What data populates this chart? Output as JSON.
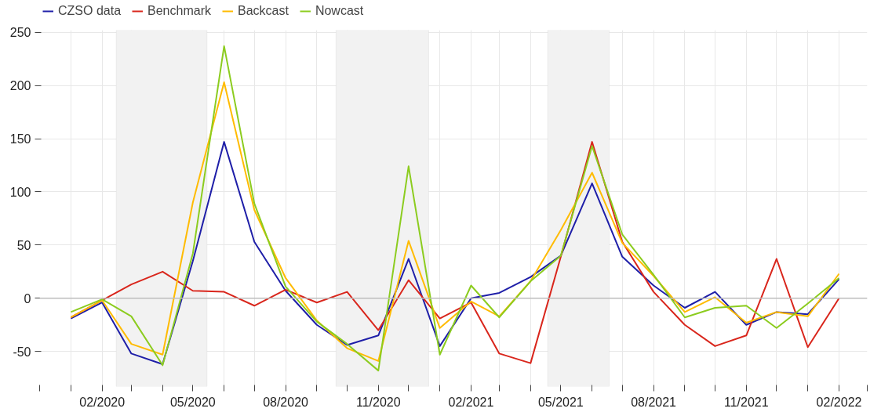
{
  "chart_data": {
    "type": "line",
    "x": [
      "2020-01",
      "2020-02",
      "2020-03",
      "2020-04",
      "2020-05",
      "2020-06",
      "2020-07",
      "2020-08",
      "2020-09",
      "2020-10",
      "2020-11",
      "2020-12",
      "2021-01",
      "2021-02",
      "2021-03",
      "2021-04",
      "2021-05",
      "2021-06",
      "2021-07",
      "2021-08",
      "2021-09",
      "2021-10",
      "2021-11",
      "2021-12",
      "2022-01",
      "2022-02"
    ],
    "series": [
      {
        "name": "CZSO data",
        "color": "#1f1fa8",
        "values": [
          -19,
          -4,
          -52,
          -62,
          35,
          147,
          53,
          7,
          -25,
          -44,
          -35,
          37,
          -45,
          0,
          5,
          20,
          40,
          108,
          39,
          12,
          -9,
          6,
          -25,
          -13,
          -15,
          18
        ]
      },
      {
        "name": "Benchmark",
        "color": "#d9261c",
        "values": [
          -18,
          -2,
          13,
          25,
          7,
          6,
          -7,
          8,
          -4,
          6,
          -30,
          17,
          -19,
          -4,
          -52,
          -61,
          39,
          147,
          53,
          6,
          -25,
          -45,
          -35,
          37,
          -46,
          0
        ]
      },
      {
        "name": "Backcast",
        "color": "#ffbb00",
        "values": [
          -18,
          -2,
          -43,
          -53,
          90,
          203,
          83,
          19,
          -21,
          -47,
          -59,
          54,
          -28,
          -3,
          -17,
          16,
          64,
          118,
          52,
          21,
          -13,
          1,
          -23,
          -13,
          -17,
          23
        ]
      },
      {
        "name": "Nowcast",
        "color": "#8ccc1f",
        "values": [
          -13,
          -1,
          -17,
          -63,
          42,
          237,
          89,
          11,
          -22,
          -43,
          -68,
          124,
          -53,
          12,
          -18,
          16,
          40,
          143,
          60,
          22,
          -18,
          -9,
          -7,
          -28,
          -5,
          19
        ]
      }
    ],
    "xlim": [
      "2019-12-01",
      "2022-03-01"
    ],
    "xticks": [
      {
        "value": "2019-12",
        "label": null
      },
      {
        "value": "2020-01",
        "label": null
      },
      {
        "value": "2020-02",
        "label": "02/2020"
      },
      {
        "value": "2020-03",
        "label": null
      },
      {
        "value": "2020-04",
        "label": null
      },
      {
        "value": "2020-05",
        "label": "05/2020"
      },
      {
        "value": "2020-06",
        "label": null
      },
      {
        "value": "2020-07",
        "label": null
      },
      {
        "value": "2020-08",
        "label": "08/2020"
      },
      {
        "value": "2020-09",
        "label": null
      },
      {
        "value": "2020-10",
        "label": null
      },
      {
        "value": "2020-11",
        "label": "11/2020"
      },
      {
        "value": "2020-12",
        "label": null
      },
      {
        "value": "2021-01",
        "label": null
      },
      {
        "value": "2021-02",
        "label": "02/2021"
      },
      {
        "value": "2021-03",
        "label": null
      },
      {
        "value": "2021-04",
        "label": null
      },
      {
        "value": "2021-05",
        "label": "05/2021"
      },
      {
        "value": "2021-06",
        "label": null
      },
      {
        "value": "2021-07",
        "label": null
      },
      {
        "value": "2021-08",
        "label": "08/2021"
      },
      {
        "value": "2021-09",
        "label": null
      },
      {
        "value": "2021-10",
        "label": null
      },
      {
        "value": "2021-11",
        "label": "11/2021"
      },
      {
        "value": "2021-12",
        "label": null
      },
      {
        "value": "2022-01",
        "label": null
      },
      {
        "value": "2022-02",
        "label": "02/2022"
      },
      {
        "value": "2022-03",
        "label": null
      }
    ],
    "ylim": [
      -83,
      252
    ],
    "yticks": [
      -50,
      0,
      50,
      100,
      150,
      200,
      250
    ],
    "ref_lines": [
      {
        "axis": "y",
        "value": 0,
        "color": "#bdbdbd"
      }
    ],
    "bands": [
      {
        "axis": "x",
        "from": "2020-02-15",
        "to": "2020-05-15",
        "color": "#f2f2f2"
      },
      {
        "axis": "x",
        "from": "2020-09-20",
        "to": "2020-12-21",
        "color": "#f2f2f2"
      },
      {
        "axis": "x",
        "from": "2021-04-18",
        "to": "2021-06-18",
        "color": "#f2f2f2"
      }
    ],
    "grid": true,
    "legend": "top left",
    "line_style": "solid",
    "marker": "none"
  }
}
